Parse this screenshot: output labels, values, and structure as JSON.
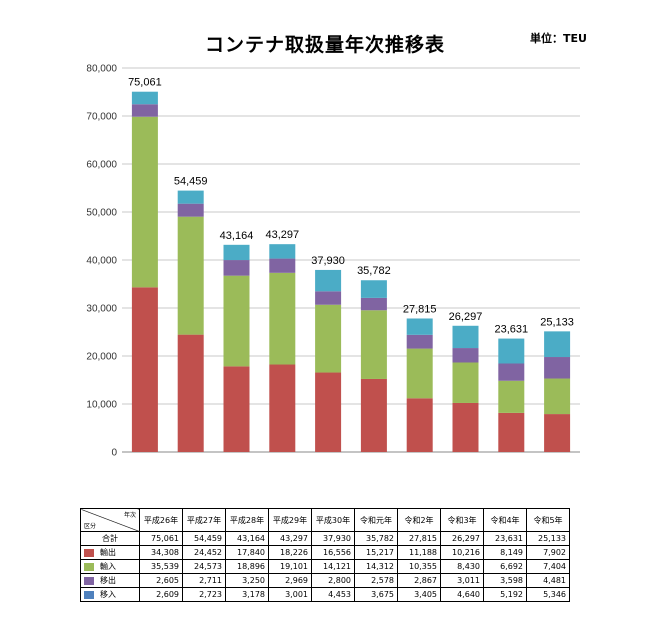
{
  "title": "コンテナ取扱量年次推移表",
  "unit": "単位：TEU",
  "chart_data": {
    "type": "bar",
    "stacked": true,
    "categories": [
      "平成26年",
      "平成27年",
      "平成28年",
      "平成29年",
      "平成30年",
      "令和元年",
      "令和2年",
      "令和3年",
      "令和4年",
      "令和5年"
    ],
    "totals": [
      75061,
      54459,
      43164,
      43297,
      37930,
      35782,
      27815,
      26297,
      23631,
      25133
    ],
    "series": [
      {
        "name": "輸出",
        "color": "#c0504d",
        "values": [
          34308,
          24452,
          17840,
          18226,
          16556,
          15217,
          11188,
          10216,
          8149,
          7902
        ]
      },
      {
        "name": "輸入",
        "color": "#9bbb59",
        "values": [
          35539,
          24573,
          18896,
          19101,
          14121,
          14312,
          10355,
          8430,
          6692,
          7404
        ]
      },
      {
        "name": "移出",
        "color": "#8064a2",
        "values": [
          2605,
          2711,
          3250,
          2969,
          2800,
          2578,
          2867,
          3011,
          3598,
          4481
        ]
      },
      {
        "name": "移入",
        "color": "#4bacc6",
        "values": [
          2609,
          2723,
          3178,
          3001,
          4453,
          3675,
          3405,
          4640,
          5192,
          5346
        ]
      }
    ],
    "ylim": [
      0,
      80000
    ],
    "yticks": [
      0,
      10000,
      20000,
      30000,
      40000,
      50000,
      60000,
      70000,
      80000
    ],
    "ytick_labels": [
      "0",
      "10,000",
      "20,000",
      "30,000",
      "40,000",
      "50,000",
      "60,000",
      "70,000",
      "80,000"
    ],
    "grid": true
  },
  "table": {
    "corner_top": "年次",
    "corner_bottom": "区分",
    "total_label": "合計",
    "years": [
      "平成26年",
      "平成27年",
      "平成28年",
      "平成29年",
      "平成30年",
      "令和元年",
      "令和2年",
      "令和3年",
      "令和4年",
      "令和5年"
    ],
    "totals": [
      "75,061",
      "54,459",
      "43,164",
      "43,297",
      "37,930",
      "35,782",
      "27,815",
      "26,297",
      "23,631",
      "25,133"
    ],
    "rows": [
      {
        "label": "輸出",
        "color": "#c0504d",
        "values": [
          "34,308",
          "24,452",
          "17,840",
          "18,226",
          "16,556",
          "15,217",
          "11,188",
          "10,216",
          "8,149",
          "7,902"
        ]
      },
      {
        "label": "輸入",
        "color": "#9bbb59",
        "values": [
          "35,539",
          "24,573",
          "18,896",
          "19,101",
          "14,121",
          "14,312",
          "10,355",
          "8,430",
          "6,692",
          "7,404"
        ]
      },
      {
        "label": "移出",
        "color": "#8064a2",
        "values": [
          "2,605",
          "2,711",
          "3,250",
          "2,969",
          "2,800",
          "2,578",
          "2,867",
          "3,011",
          "3,598",
          "4,481"
        ]
      },
      {
        "label": "移入",
        "color": "#4f81bd",
        "values": [
          "2,609",
          "2,723",
          "3,178",
          "3,001",
          "4,453",
          "3,675",
          "3,405",
          "4,640",
          "5,192",
          "5,346"
        ]
      }
    ]
  }
}
